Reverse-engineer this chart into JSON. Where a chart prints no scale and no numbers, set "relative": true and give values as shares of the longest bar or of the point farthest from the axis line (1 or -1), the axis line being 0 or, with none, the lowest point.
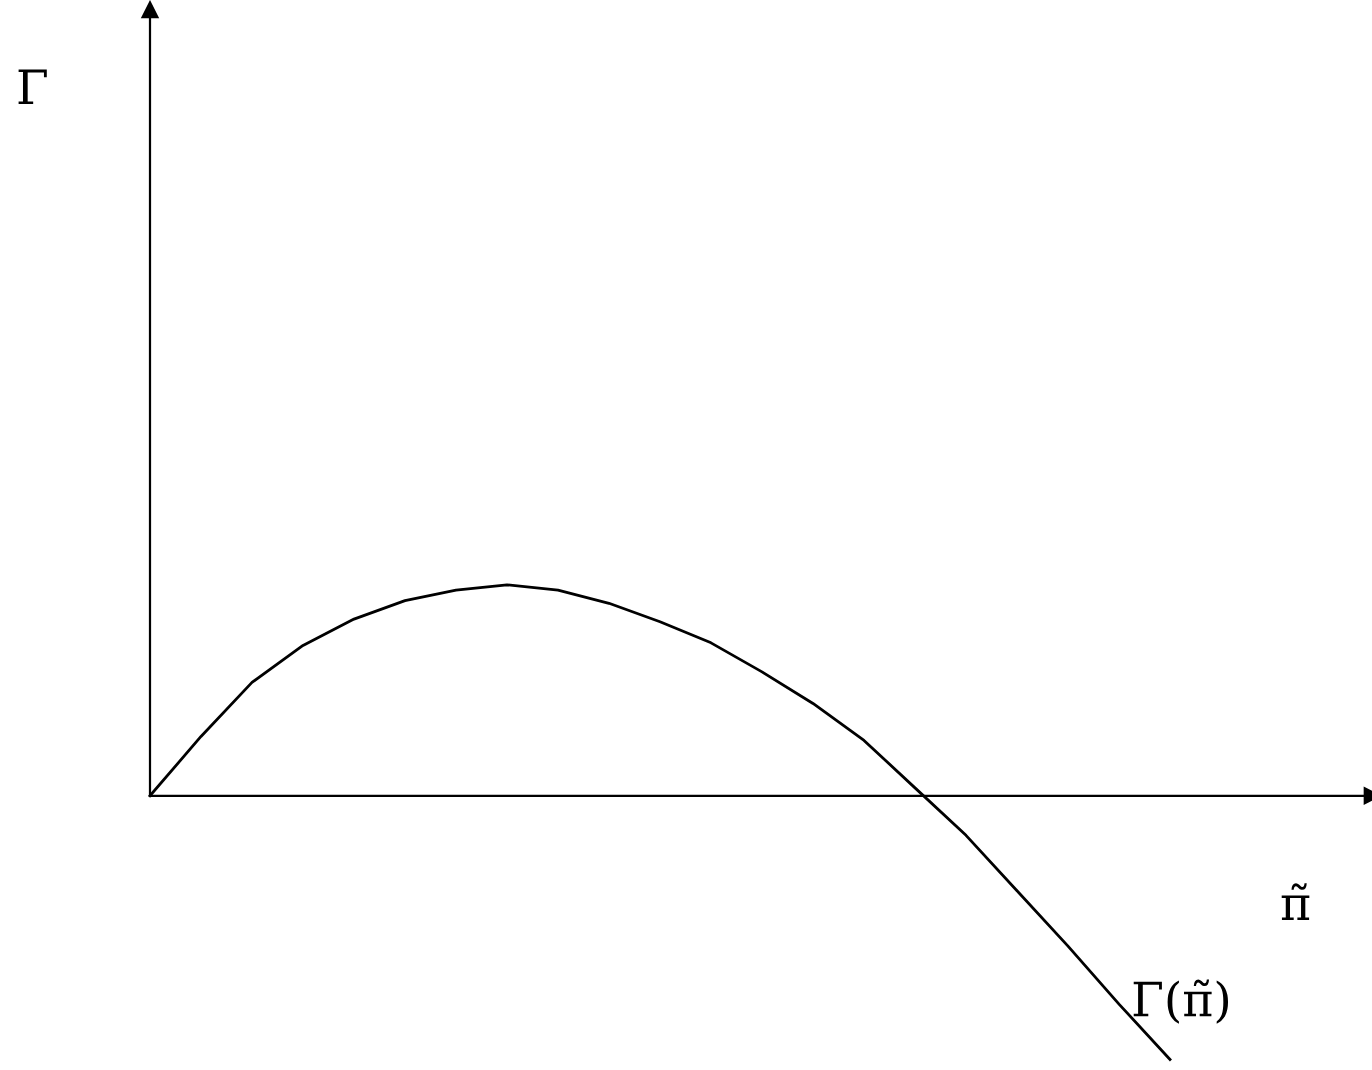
{
  "chart_data": {
    "type": "line",
    "relative": true,
    "xlabel": "π̃",
    "categories": [
      null,
      null,
      null,
      null,
      null,
      null,
      null,
      null,
      null,
      null,
      null,
      null,
      null,
      null,
      null,
      null,
      null,
      null,
      null,
      null,
      null
    ],
    "series": [
      {
        "color": "#000000",
        "values": [
          0,
          0.225,
          0.43,
          0.57,
          0.67,
          0.74,
          0.78,
          0.8,
          0.78,
          0.73,
          0.66,
          0.58,
          0.47,
          0.35,
          0.21,
          0.03,
          -0.15,
          -0.36,
          -0.57,
          -0.79,
          -1
        ]
      }
    ],
    "annotations": [
      "Γ(π̃)",
      "Γ"
    ],
    "marker": "none",
    "line_style": "solid"
  }
}
